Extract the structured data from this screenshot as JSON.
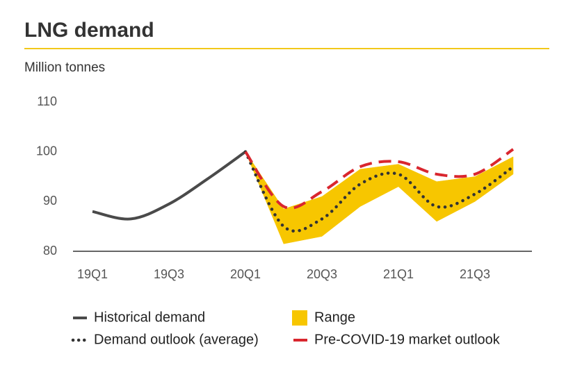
{
  "chart_data": {
    "type": "line",
    "title": "LNG demand",
    "subtitle": "Million tonnes",
    "categories": [
      "19Q1",
      null,
      "19Q3",
      null,
      "20Q1",
      null,
      "20Q3",
      null,
      "21Q1",
      null,
      "21Q3",
      null
    ],
    "ylim": [
      80,
      110
    ],
    "yticks": [
      80,
      90,
      100,
      110
    ],
    "grid": false,
    "series": [
      {
        "name": "Historical demand",
        "color": "#4a4a4a",
        "style": "solid",
        "values": [
          88,
          86.5,
          89.5,
          94.5,
          100,
          null,
          null,
          null,
          null,
          null,
          null,
          null
        ]
      },
      {
        "name": "Demand outlook (average)",
        "color": "#333333",
        "style": "dotted",
        "values": [
          null,
          null,
          null,
          null,
          100,
          85,
          86.5,
          93.5,
          95.5,
          89,
          91.5,
          97
        ]
      },
      {
        "name": "Pre-COVID-19 market outlook",
        "color": "#d9262e",
        "style": "dashed",
        "values": [
          null,
          null,
          null,
          null,
          100,
          89,
          92,
          97,
          98,
          95.5,
          95.5,
          100.5
        ]
      }
    ],
    "range": {
      "name": "Range",
      "color": "#f7c600",
      "low": [
        null,
        null,
        null,
        null,
        100,
        81.5,
        83,
        89,
        93,
        86,
        90,
        95.5
      ],
      "high": [
        null,
        null,
        null,
        null,
        100,
        88.5,
        91,
        96.5,
        97.5,
        94,
        95,
        99
      ]
    }
  }
}
